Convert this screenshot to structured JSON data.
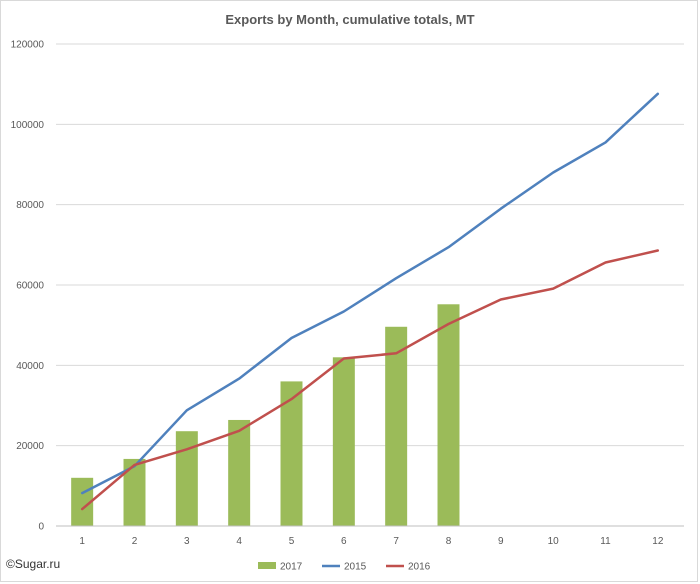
{
  "chart_data": {
    "type": "bar",
    "title": "Exports by Month, cumulative totals, MT",
    "xlabel": "",
    "ylabel": "",
    "categories": [
      "1",
      "2",
      "3",
      "4",
      "5",
      "6",
      "7",
      "8",
      "9",
      "10",
      "11",
      "12"
    ],
    "ylim": [
      0,
      120000
    ],
    "yticks": [
      0,
      20000,
      40000,
      60000,
      80000,
      100000,
      120000
    ],
    "ytick_labels": [
      "0",
      "20000",
      "40000",
      "60000",
      "80000",
      "100000",
      "120000"
    ],
    "grid": true,
    "legend_position": "bottom",
    "series": [
      {
        "name": "2017",
        "kind": "bar",
        "color": "#9bbb59",
        "values": [
          12000,
          16700,
          23600,
          26400,
          36000,
          42000,
          49600,
          55200,
          null,
          null,
          null,
          null
        ]
      },
      {
        "name": "2015",
        "kind": "line",
        "color": "#4f81bd",
        "values": [
          8200,
          14900,
          28800,
          36700,
          46800,
          53400,
          61700,
          69400,
          79000,
          88000,
          95500,
          107600
        ]
      },
      {
        "name": "2016",
        "kind": "line",
        "color": "#c0504d",
        "values": [
          4200,
          15200,
          19100,
          23700,
          31600,
          41700,
          43000,
          50300,
          56400,
          59100,
          65600,
          68600
        ]
      }
    ]
  },
  "credit": "©Sugar.ru"
}
